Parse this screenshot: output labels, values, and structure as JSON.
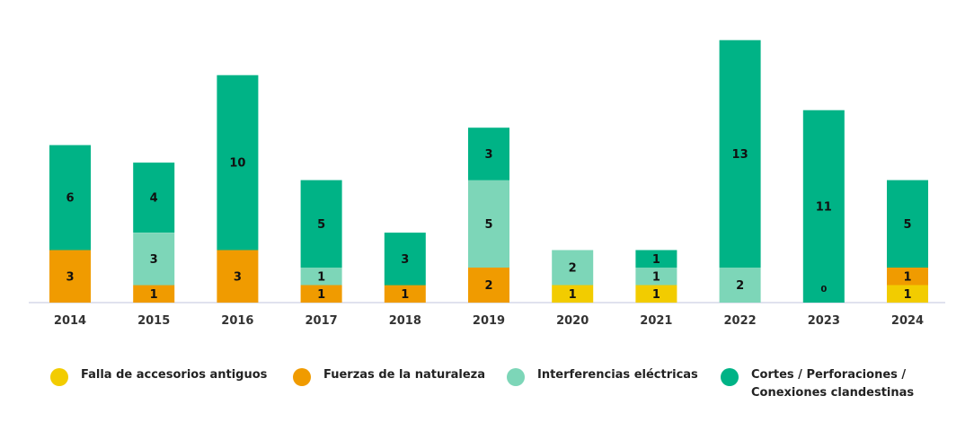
{
  "chart_data": {
    "type": "bar",
    "stacked": true,
    "categories": [
      "2014",
      "2015",
      "2016",
      "2017",
      "2018",
      "2019",
      "2020",
      "2021",
      "2022",
      "2023",
      "2024"
    ],
    "series": [
      {
        "name": "Falla de accesorios antiguos",
        "color": "#F2CC00",
        "values": [
          0,
          0,
          0,
          0,
          0,
          0,
          1,
          1,
          0,
          0,
          1
        ]
      },
      {
        "name": "Fuerzas de la naturaleza",
        "color": "#F09B00",
        "values": [
          3,
          1,
          3,
          1,
          1,
          2,
          0,
          0,
          0,
          0,
          1
        ]
      },
      {
        "name": "Interferencias eléctricas",
        "color": "#7DD6B8",
        "values": [
          0,
          3,
          0,
          1,
          0,
          5,
          2,
          1,
          2,
          0,
          0
        ]
      },
      {
        "name": "Cortes / Perforaciones / Conexiones clandestinas",
        "color": "#00B386",
        "values": [
          6,
          4,
          10,
          5,
          3,
          3,
          0,
          1,
          13,
          11,
          5
        ]
      }
    ],
    "extra_labels": [
      {
        "category": "2023",
        "text": "0"
      }
    ],
    "ylim": [
      0,
      15.5
    ],
    "grid": false,
    "legend_position": "bottom",
    "title": "",
    "xlabel": "",
    "ylabel": ""
  },
  "legend": {
    "items": [
      {
        "label": "Falla de accesorios antiguos",
        "color": "#F2CC00"
      },
      {
        "label": "Fuerzas de la naturaleza",
        "color": "#F09B00"
      },
      {
        "label": "Interferencias eléctricas",
        "color": "#7DD6B8"
      },
      {
        "label": "Cortes / Perforaciones /\nConexiones clandestinas",
        "color": "#00B386"
      }
    ]
  }
}
